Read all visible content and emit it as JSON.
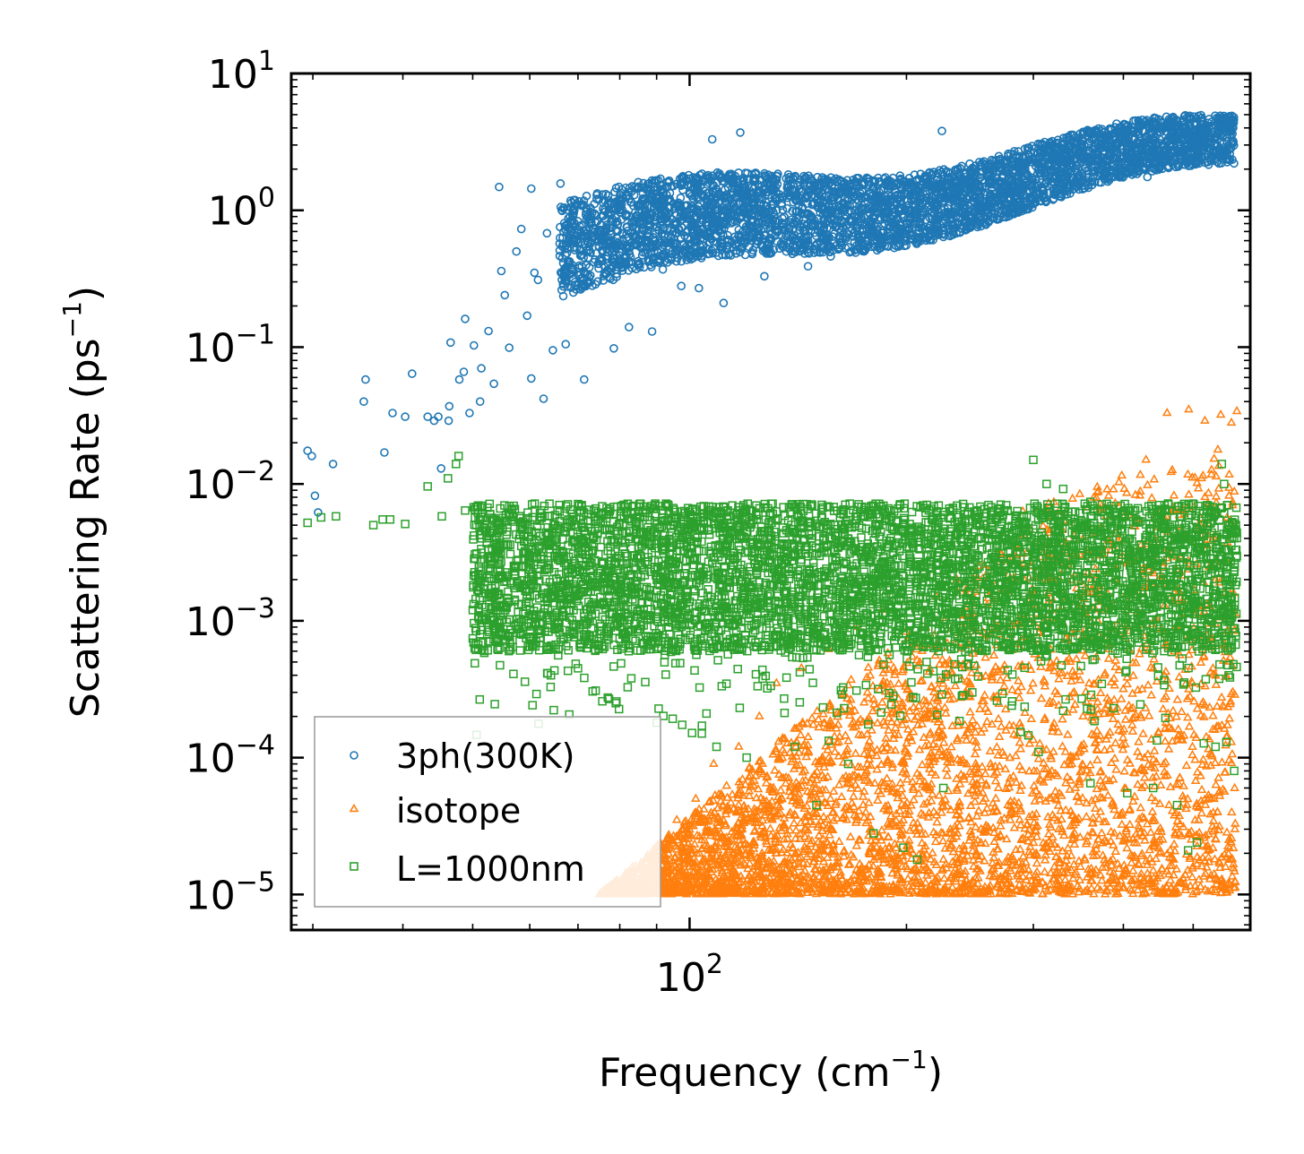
{
  "chart_data": {
    "type": "scatter",
    "xscale": "log",
    "yscale": "log",
    "xlim": [
      28,
      600
    ],
    "ylim": [
      5.5e-06,
      10
    ],
    "xlabel": "Frequency (cm",
    "xlabel_sup": "−1",
    "xlabel_end": ")",
    "ylabel": "Scattering Rate (ps",
    "ylabel_sup": "−1",
    "ylabel_end": ")",
    "x_ticks": [
      {
        "value": 100,
        "base": "10",
        "exp": "2"
      }
    ],
    "y_ticks": [
      {
        "value": 10,
        "base": "10",
        "exp": "1"
      },
      {
        "value": 1,
        "base": "10",
        "exp": "0"
      },
      {
        "value": 0.1,
        "base": "10",
        "exp": "−1"
      },
      {
        "value": 0.01,
        "base": "10",
        "exp": "−2"
      },
      {
        "value": 0.001,
        "base": "10",
        "exp": "−3"
      },
      {
        "value": 0.0001,
        "base": "10",
        "exp": "−4"
      },
      {
        "value": 1e-05,
        "base": "10",
        "exp": "−5"
      }
    ],
    "legend_position": "lower-left",
    "series": [
      {
        "name": "3ph(300K)",
        "marker": "circle",
        "color": "#1f77b4",
        "points": [
          [
            29.5,
            0.0175
          ],
          [
            29.9,
            0.016
          ],
          [
            30.2,
            0.0082
          ],
          [
            30.5,
            0.0062
          ],
          [
            32,
            0.014
          ],
          [
            35.5,
            0.058
          ],
          [
            35.3,
            0.04
          ],
          [
            37.7,
            0.017
          ],
          [
            38.7,
            0.033
          ],
          [
            40.3,
            0.031
          ],
          [
            41.2,
            0.064
          ],
          [
            43.3,
            0.031
          ],
          [
            44.2,
            0.029
          ],
          [
            44.8,
            0.031
          ],
          [
            45.2,
            0.013
          ],
          [
            46.4,
            0.037
          ],
          [
            46.3,
            0.029
          ],
          [
            46.6,
            0.108
          ],
          [
            47.9,
            0.058
          ],
          [
            48.8,
            0.161
          ],
          [
            49.5,
            0.033
          ],
          [
            48.6,
            0.066
          ],
          [
            50.2,
            0.103
          ],
          [
            51.4,
            0.07
          ],
          [
            51.2,
            0.04
          ],
          [
            52.6,
            0.131
          ],
          [
            53.5,
            0.054
          ],
          [
            54.4,
            1.48
          ],
          [
            54.8,
            0.36
          ],
          [
            55.4,
            0.24
          ],
          [
            56.2,
            0.099
          ],
          [
            57.5,
            0.5
          ],
          [
            58.4,
            0.73
          ],
          [
            59.5,
            0.17
          ],
          [
            60.3,
            0.059
          ],
          [
            60.3,
            1.44
          ],
          [
            60.9,
            0.35
          ],
          [
            61.6,
            0.31
          ],
          [
            62.7,
            0.042
          ],
          [
            63.4,
            0.68
          ],
          [
            64.6,
            0.095
          ],
          [
            66.2,
            1.57
          ],
          [
            66.8,
            0.57
          ],
          [
            67.3,
            0.105
          ],
          [
            70.5,
            0.52
          ],
          [
            71.4,
            0.058
          ],
          [
            76.3,
            0.34
          ],
          [
            78.5,
            0.098
          ],
          [
            82.4,
            0.14
          ],
          [
            86.3,
            1.58
          ],
          [
            88.7,
            0.13
          ],
          [
            91.8,
            0.37
          ],
          [
            97.4,
            0.28
          ],
          [
            103,
            0.27
          ],
          [
            107.5,
            3.3
          ],
          [
            111.5,
            0.21
          ],
          [
            117.6,
            3.7
          ],
          [
            127,
            0.33
          ],
          [
            135,
            0.56
          ],
          [
            146,
            0.39
          ],
          [
            157,
            0.46
          ],
          [
            170,
            0.49
          ],
          [
            183,
            0.63
          ],
          [
            194,
            0.61
          ],
          [
            207,
            0.93
          ],
          [
            224,
            3.8
          ],
          [
            240,
            1.03
          ],
          [
            261,
            1.2
          ],
          [
            282,
            0.94
          ],
          [
            305,
            1.35
          ],
          [
            331,
            1.75
          ],
          [
            360,
            2.25
          ],
          [
            396,
            2.5
          ],
          [
            432,
            1.75
          ],
          [
            470,
            4.1
          ],
          [
            506,
            4.3
          ],
          [
            540,
            3.6
          ],
          [
            565,
            4.2
          ]
        ],
        "band": {
          "x_range": [
            66,
            570
          ],
          "y_low": 0.25,
          "y_high": 3.2
        }
      },
      {
        "name": "isotope",
        "marker": "triangle",
        "color": "#ff7f0e",
        "points": [
          [
            75,
            1e-05
          ],
          [
            82,
            1.05e-05
          ],
          [
            90,
            1.5e-05
          ],
          [
            96,
            3.5e-05
          ],
          [
            102,
            5e-05
          ],
          [
            108,
            9e-05
          ],
          [
            117,
            0.00012
          ],
          [
            125,
            0.0002
          ],
          [
            132,
            0.00035
          ],
          [
            143,
            0.00045
          ],
          [
            156,
            0.00062
          ],
          [
            171,
            0.0009
          ],
          [
            185,
            0.0012
          ],
          [
            201,
            0.00016
          ],
          [
            220,
            0.0015
          ],
          [
            235,
            0.002
          ],
          [
            252,
            0.0025
          ],
          [
            270,
            0.0031
          ],
          [
            290,
            0.0063
          ],
          [
            315,
            0.0072
          ],
          [
            340,
            0.0078
          ],
          [
            368,
            0.0095
          ],
          [
            398,
            0.0115
          ],
          [
            430,
            0.015
          ],
          [
            460,
            0.033
          ],
          [
            493,
            0.035
          ],
          [
            519,
            0.029
          ],
          [
            546,
            0.032
          ],
          [
            565,
            0.028
          ],
          [
            575,
            0.034
          ],
          [
            520,
            4.5e-05
          ],
          [
            490,
            4.5e-05
          ],
          [
            160,
            1.3e-05
          ],
          [
            172,
            1.25e-05
          ]
        ],
        "band": {
          "x_range": [
            75,
            572
          ],
          "y_low": 1e-05,
          "y_high": 0.0065
        }
      },
      {
        "name": "L=1000nm",
        "marker": "square",
        "color": "#2ca02c",
        "points": [
          [
            29.5,
            0.0052
          ],
          [
            30.8,
            0.0057
          ],
          [
            32.3,
            0.0058
          ],
          [
            36.4,
            0.005
          ],
          [
            37.5,
            0.0055
          ],
          [
            38.4,
            0.0055
          ],
          [
            40.3,
            0.0051
          ],
          [
            43.3,
            0.0096
          ],
          [
            45.3,
            0.0058
          ],
          [
            46.2,
            0.011
          ],
          [
            47.4,
            0.014
          ],
          [
            47.8,
            0.016
          ],
          [
            48.8,
            0.0064
          ],
          [
            50.2,
            0.0042
          ],
          [
            53.8,
            0.0032
          ],
          [
            56.3,
            0.0007
          ],
          [
            57.1,
            0.0023
          ],
          [
            60.7,
            0.0018
          ],
          [
            62.3,
            0.0011
          ],
          [
            64.2,
            0.0004
          ],
          [
            65.7,
            0.0009
          ],
          [
            68.2,
            0.0008
          ],
          [
            70,
            0.00045
          ],
          [
            72,
            0.00063
          ],
          [
            75,
            0.0008
          ],
          [
            79,
            0.00025
          ],
          [
            83,
            0.00038
          ],
          [
            90,
            0.00018
          ],
          [
            104,
            0.00015
          ],
          [
            109,
            0.00012
          ],
          [
            120,
            0.0001
          ],
          [
            140,
            0.00012
          ],
          [
            150,
            4.5e-05
          ],
          [
            166,
            9e-05
          ],
          [
            180,
            2.8e-05
          ],
          [
            198,
            2.2e-05
          ],
          [
            207,
            1.8e-05
          ],
          [
            225,
            6e-05
          ],
          [
            280,
            0.00024
          ],
          [
            305,
            0.00011
          ],
          [
            330,
            0.00022
          ],
          [
            360,
            6.5e-05
          ],
          [
            405,
            5.5e-05
          ],
          [
            440,
            6e-05
          ],
          [
            475,
            4.5e-05
          ],
          [
            492,
            2.1e-05
          ],
          [
            506,
            2.4e-05
          ],
          [
            537,
            0.00012
          ],
          [
            556,
            0.00013
          ],
          [
            560,
            0.0004
          ],
          [
            570,
            8e-05
          ],
          [
            300,
            0.015
          ],
          [
            313,
            0.01
          ],
          [
            330,
            0.0092
          ],
          [
            360,
            0.0074
          ],
          [
            380,
            0.0065
          ],
          [
            548,
            0.014
          ],
          [
            552,
            0.01
          ]
        ],
        "band": {
          "x_range": [
            50,
            575
          ],
          "y_low": 0.0006,
          "y_high": 0.0072
        }
      }
    ]
  }
}
